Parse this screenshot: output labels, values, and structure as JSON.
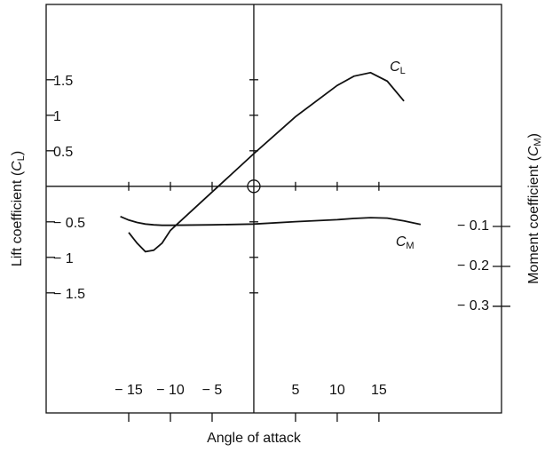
{
  "chart_data": {
    "type": "line",
    "x_label": "Angle of attack",
    "y_label": [
      "Lift coefficient (",
      "C",
      "L",
      ")"
    ],
    "y2_label": [
      "Moment coefficient (",
      "C",
      "M",
      ")"
    ],
    "xlim": [
      -24.9,
      29.7
    ],
    "xticks": [
      -15,
      -10,
      -5,
      5,
      10,
      15
    ],
    "ylim": [
      -3.19,
      2.56
    ],
    "yticks": [
      -1.5,
      -1.0,
      -0.5,
      0.5,
      1.0,
      1.5
    ],
    "y2lim": [
      -0.567,
      0.456
    ],
    "y2ticks": [
      -0.3,
      -0.2,
      -0.1
    ],
    "x": [
      -16,
      -15,
      -14,
      -13,
      -12,
      -11,
      -10,
      -5,
      0,
      5,
      10,
      12,
      14,
      16,
      18,
      20
    ],
    "series": [
      {
        "annotation": [
          "C",
          "L"
        ],
        "color": "#111111",
        "values": [
          null,
          -0.65,
          -0.8,
          -0.92,
          -0.9,
          -0.8,
          -0.62,
          -0.08,
          0.46,
          0.98,
          1.42,
          1.55,
          1.6,
          1.48,
          1.2,
          null
        ]
      },
      {
        "annotation": [
          "C",
          "M"
        ],
        "color": "#111111",
        "axis": "y2",
        "values": [
          -0.075,
          -0.084,
          -0.09,
          -0.094,
          -0.096,
          -0.097,
          -0.097,
          -0.096,
          -0.094,
          -0.088,
          -0.083,
          -0.08,
          -0.078,
          -0.079,
          -0.086,
          -0.095
        ]
      }
    ]
  }
}
